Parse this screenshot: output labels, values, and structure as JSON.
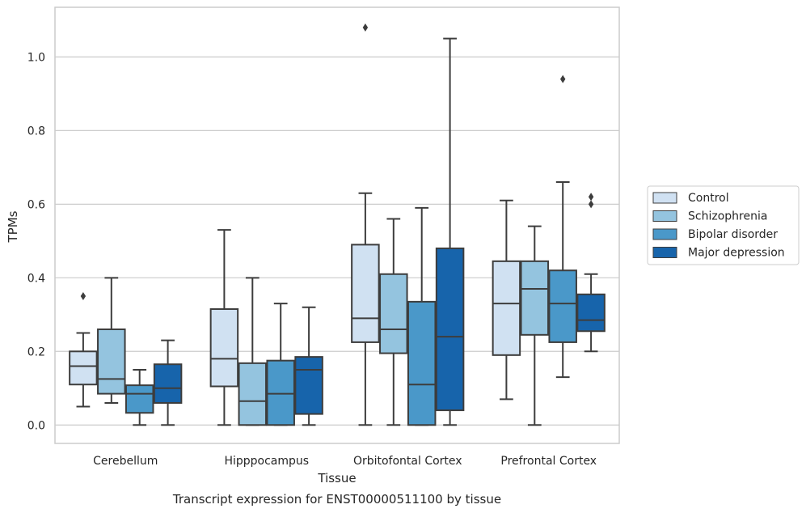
{
  "chart_data": {
    "type": "box",
    "title": "",
    "caption": "Transcript expression for ENST00000511100 by tissue",
    "xlabel": "Tissue",
    "ylabel": "TPMs",
    "ylim": [
      -0.05,
      1.135
    ],
    "yticks": [
      0.0,
      0.2,
      0.4,
      0.6,
      0.8,
      1.0
    ],
    "ytick_labels": [
      "0.0",
      "0.2",
      "0.4",
      "0.6",
      "0.8",
      "1.0"
    ],
    "grid": true,
    "legend_placement": "right",
    "categories": [
      "Cerebellum",
      "Hipppocampus",
      "Orbitofontal Cortex",
      "Prefrontal Cortex"
    ],
    "series": [
      {
        "name": "Control",
        "color": "#d0e1f2",
        "boxes": [
          {
            "whisker_low": 0.05,
            "q1": 0.11,
            "median": 0.16,
            "q3": 0.2,
            "whisker_high": 0.25,
            "outliers": [
              0.35
            ]
          },
          {
            "whisker_low": 0.0,
            "q1": 0.105,
            "median": 0.18,
            "q3": 0.315,
            "whisker_high": 0.53,
            "outliers": []
          },
          {
            "whisker_low": 0.0,
            "q1": 0.225,
            "median": 0.29,
            "q3": 0.49,
            "whisker_high": 0.63,
            "outliers": [
              1.08
            ]
          },
          {
            "whisker_low": 0.07,
            "q1": 0.19,
            "median": 0.33,
            "q3": 0.445,
            "whisker_high": 0.61,
            "outliers": []
          }
        ]
      },
      {
        "name": "Schizophrenia",
        "color": "#94c4df",
        "boxes": [
          {
            "whisker_low": 0.06,
            "q1": 0.085,
            "median": 0.125,
            "q3": 0.26,
            "whisker_high": 0.4,
            "outliers": []
          },
          {
            "whisker_low": 0.0,
            "q1": 0.0,
            "median": 0.065,
            "q3": 0.168,
            "whisker_high": 0.4,
            "outliers": []
          },
          {
            "whisker_low": 0.0,
            "q1": 0.195,
            "median": 0.26,
            "q3": 0.41,
            "whisker_high": 0.56,
            "outliers": []
          },
          {
            "whisker_low": 0.0,
            "q1": 0.245,
            "median": 0.37,
            "q3": 0.445,
            "whisker_high": 0.54,
            "outliers": []
          }
        ]
      },
      {
        "name": "Bipolar disorder",
        "color": "#4a98c9",
        "boxes": [
          {
            "whisker_low": 0.0,
            "q1": 0.033,
            "median": 0.085,
            "q3": 0.108,
            "whisker_high": 0.15,
            "outliers": []
          },
          {
            "whisker_low": 0.0,
            "q1": 0.0,
            "median": 0.085,
            "q3": 0.175,
            "whisker_high": 0.33,
            "outliers": []
          },
          {
            "whisker_low": 0.0,
            "q1": 0.0,
            "median": 0.11,
            "q3": 0.335,
            "whisker_high": 0.59,
            "outliers": []
          },
          {
            "whisker_low": 0.13,
            "q1": 0.225,
            "median": 0.33,
            "q3": 0.42,
            "whisker_high": 0.66,
            "outliers": [
              0.94
            ]
          }
        ]
      },
      {
        "name": "Major depression",
        "color": "#1764ab",
        "boxes": [
          {
            "whisker_low": 0.0,
            "q1": 0.06,
            "median": 0.1,
            "q3": 0.165,
            "whisker_high": 0.23,
            "outliers": []
          },
          {
            "whisker_low": 0.0,
            "q1": 0.03,
            "median": 0.15,
            "q3": 0.185,
            "whisker_high": 0.32,
            "outliers": []
          },
          {
            "whisker_low": 0.0,
            "q1": 0.04,
            "median": 0.24,
            "q3": 0.48,
            "whisker_high": 1.05,
            "outliers": []
          },
          {
            "whisker_low": 0.2,
            "q1": 0.255,
            "median": 0.285,
            "q3": 0.355,
            "whisker_high": 0.41,
            "outliers": [
              0.6,
              0.62
            ]
          }
        ]
      }
    ]
  }
}
